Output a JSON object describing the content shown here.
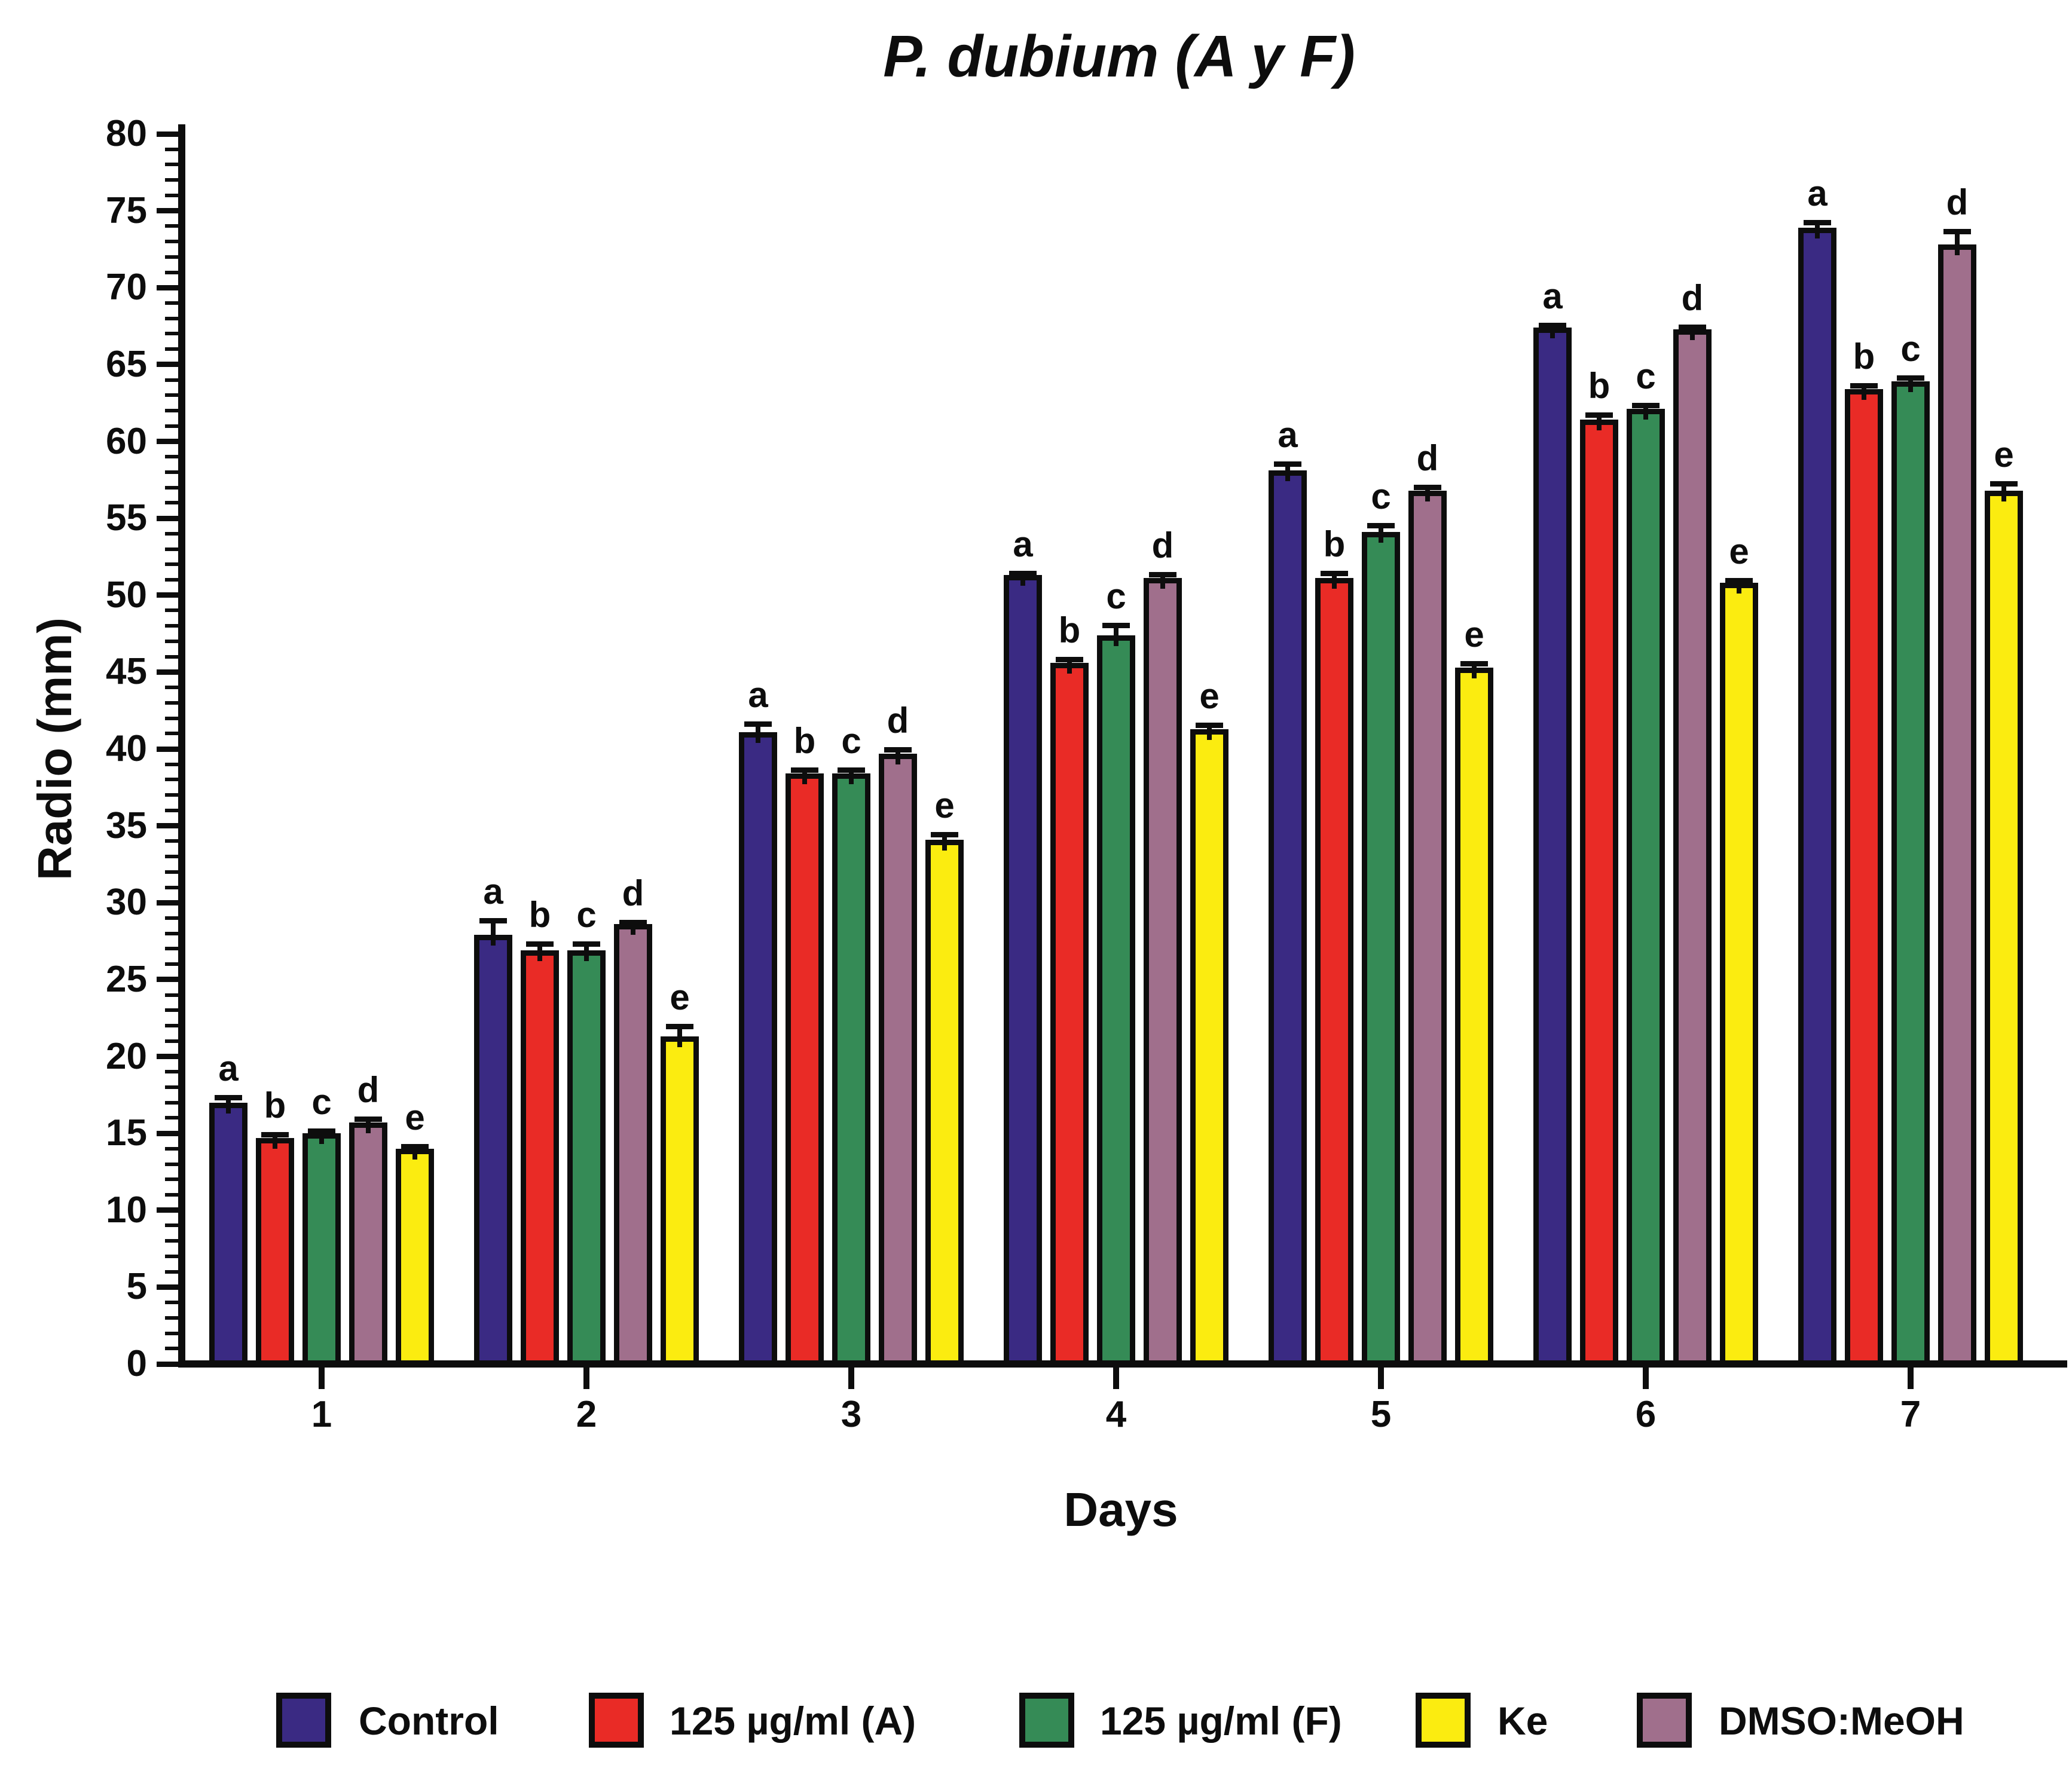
{
  "page": {
    "background": "#FFFFFF"
  },
  "chart_data": {
    "type": "bar",
    "title": "P. dubium (A y F)",
    "xlabel": "Days",
    "ylabel": "Radio (mm)",
    "categories": [
      "1",
      "2",
      "3",
      "4",
      "5",
      "6",
      "7"
    ],
    "ylim": [
      0,
      80
    ],
    "ytick_step": 5,
    "yminor_step": 1,
    "yticks": [
      0,
      5,
      10,
      15,
      20,
      25,
      30,
      35,
      40,
      45,
      50,
      55,
      60,
      65,
      70,
      75,
      80
    ],
    "grid": false,
    "legend_position": "bottom",
    "bar_group_order": [
      "Control",
      "125 µg/ml (A)",
      "125 µg/ml (F)",
      "DMSO:MeOH",
      "Ke"
    ],
    "series": [
      {
        "name": "Control",
        "letter": "a",
        "color": "#3A2A83",
        "values": [
          17.0,
          27.9,
          41.1,
          51.3,
          58.1,
          67.4,
          73.9
        ],
        "errors": [
          0.5,
          1.1,
          0.7,
          0.3,
          0.6,
          0.3,
          0.5
        ]
      },
      {
        "name": "125 µg/ml (A)",
        "letter": "b",
        "color": "#E92B26",
        "values": [
          14.7,
          26.9,
          38.4,
          45.6,
          51.1,
          61.4,
          63.4
        ],
        "errors": [
          0.4,
          0.6,
          0.4,
          0.4,
          0.5,
          0.5,
          0.4
        ]
      },
      {
        "name": "125 µg/ml (F)",
        "letter": "c",
        "color": "#358B56",
        "values": [
          15.0,
          26.9,
          38.4,
          47.4,
          54.1,
          62.1,
          63.9
        ],
        "errors": [
          0.3,
          0.6,
          0.4,
          0.8,
          0.6,
          0.4,
          0.4
        ]
      },
      {
        "name": "DMSO:MeOH",
        "letter": "d",
        "color": "#A06F8C",
        "values": [
          15.7,
          28.6,
          39.7,
          51.1,
          56.8,
          67.3,
          72.8
        ],
        "errors": [
          0.4,
          0.3,
          0.4,
          0.4,
          0.4,
          0.3,
          1.0
        ]
      },
      {
        "name": "Ke",
        "letter": "e",
        "color": "#FBEC10",
        "values": [
          14.0,
          21.3,
          34.1,
          41.3,
          45.3,
          50.8,
          56.8
        ],
        "errors": [
          0.3,
          0.8,
          0.5,
          0.4,
          0.4,
          0.3,
          0.6
        ]
      }
    ]
  },
  "legend": {
    "items": [
      {
        "label": "Control",
        "color": "#3A2A83"
      },
      {
        "label": "125 µg/ml (A)",
        "color": "#E92B26"
      },
      {
        "label": "125 µg/ml (F)",
        "color": "#358B56"
      },
      {
        "label": "Ke",
        "color": "#FBEC10"
      },
      {
        "label": "DMSO:MeOH",
        "color": "#A06F8C"
      }
    ]
  }
}
